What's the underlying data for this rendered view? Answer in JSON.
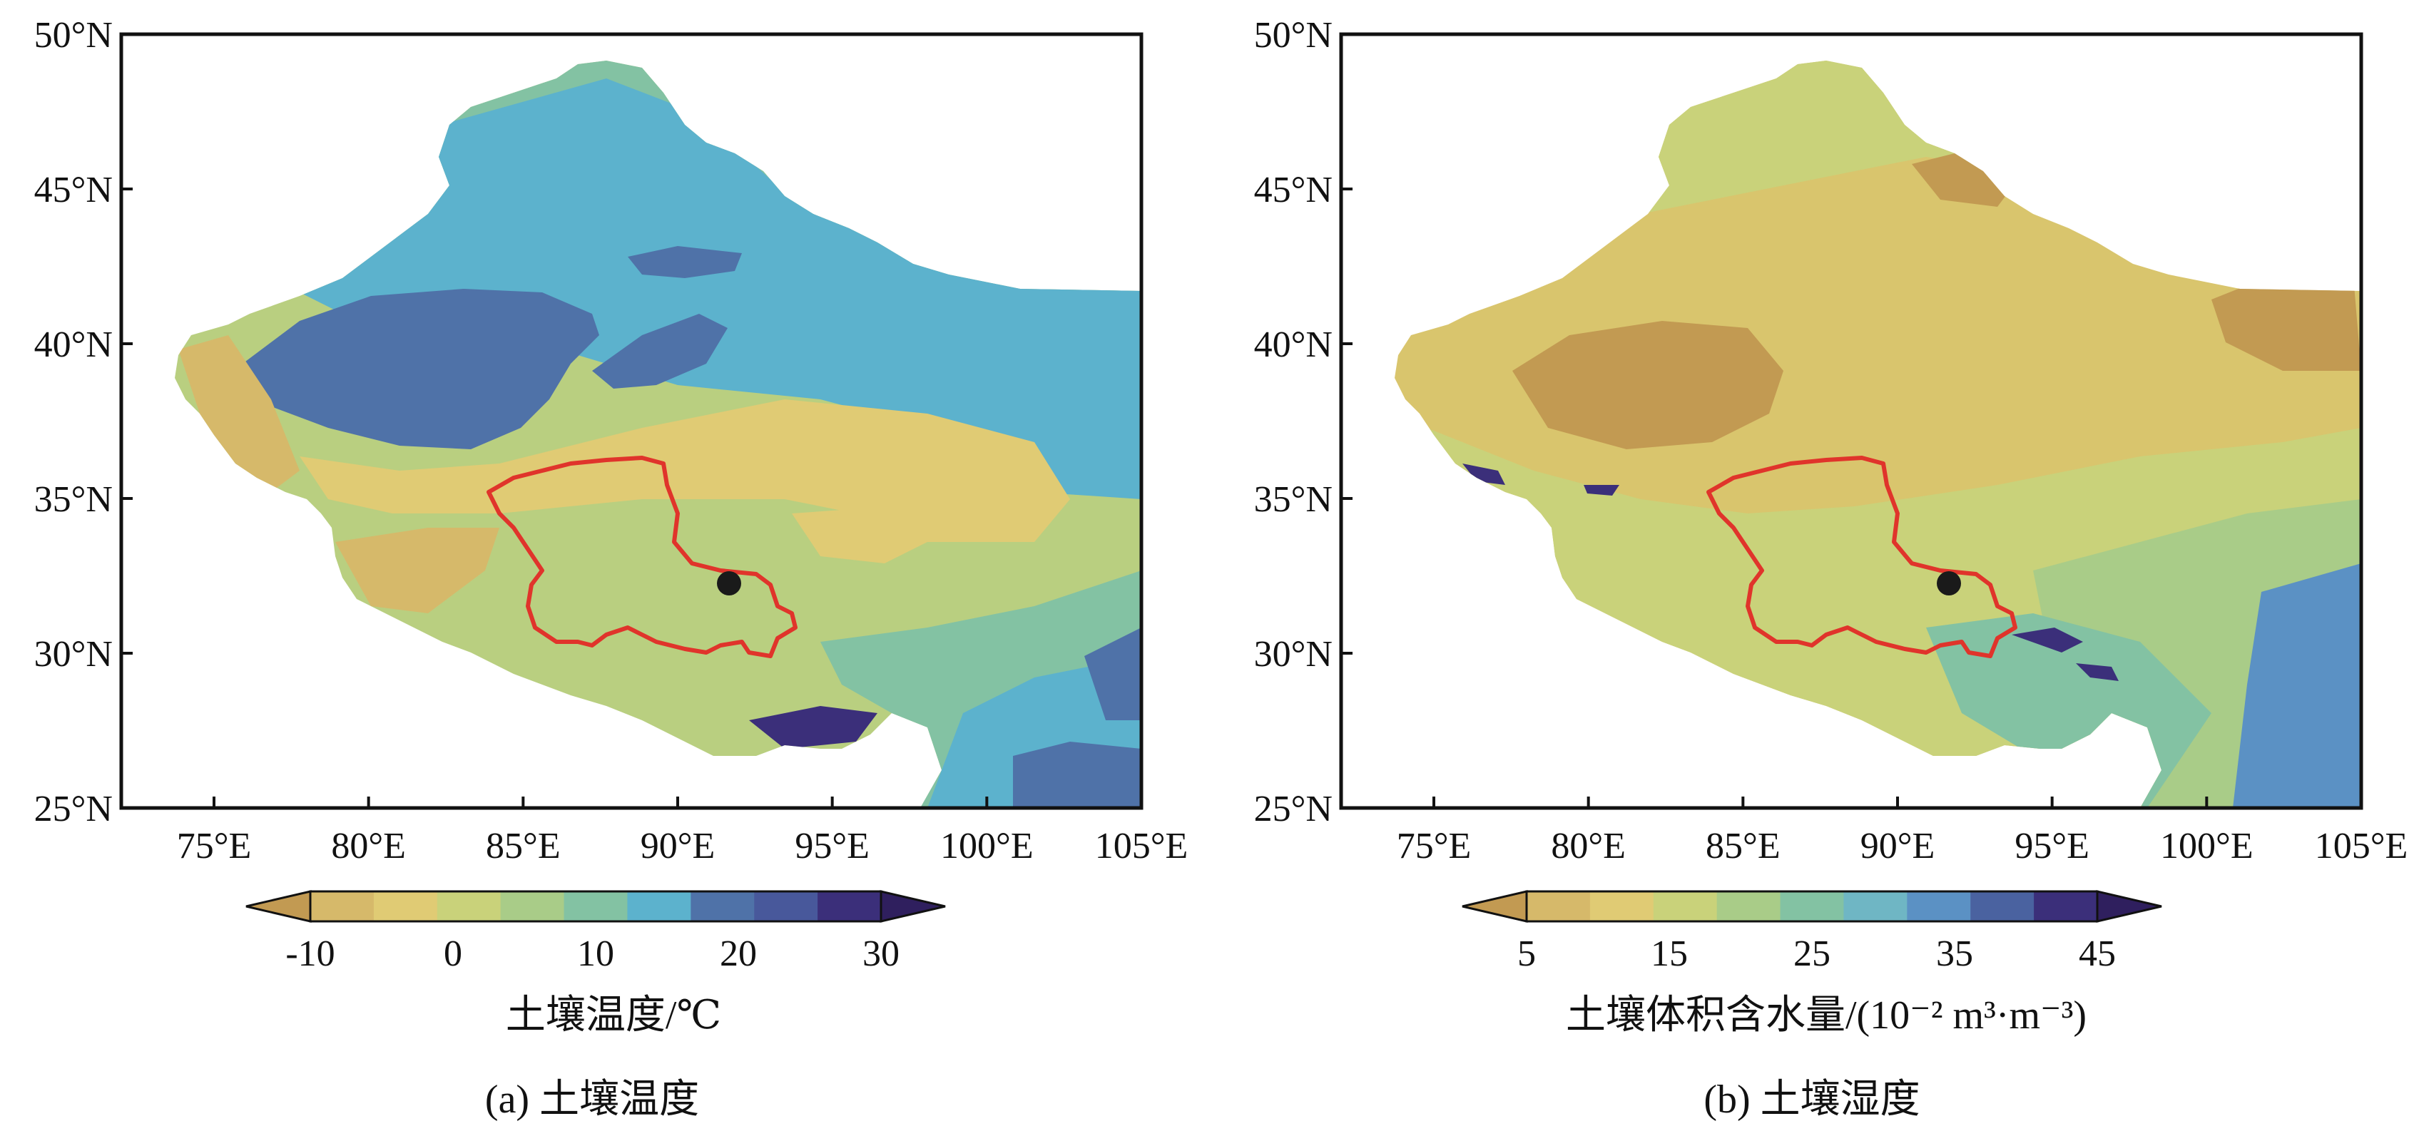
{
  "panels": [
    {
      "id": "a",
      "caption": "(a) 土壤温度",
      "colorbar_label": "土壤温度/℃",
      "colorbar_ticks": [
        "-10",
        "0",
        "10",
        "20",
        "30"
      ],
      "colorbar_colors": [
        "#c29a52",
        "#d6b96a",
        "#e0cb74",
        "#c9d27a",
        "#a9cc88",
        "#83c2a3",
        "#5cb2cd",
        "#4f72a8",
        "#48589b",
        "#3b2f7a",
        "#2f1f5e"
      ],
      "lat_labels": [
        "50°N",
        "45°N",
        "40°N",
        "35°N",
        "30°N",
        "25°N"
      ],
      "lon_labels": [
        "75°E",
        "80°E",
        "85°E",
        "90°E",
        "95°E",
        "100°E",
        "105°E"
      ]
    },
    {
      "id": "b",
      "caption": "(b) 土壤湿度",
      "colorbar_label": "土壤体积含水量/(10⁻² m³·m⁻³)",
      "colorbar_ticks": [
        "5",
        "15",
        "25",
        "35",
        "45"
      ],
      "colorbar_colors": [
        "#c29a52",
        "#d6b96a",
        "#e0cb74",
        "#c9d27a",
        "#a9cc88",
        "#83c2a3",
        "#6fb6c4",
        "#5b91c4",
        "#4a62a0",
        "#3b2f7a",
        "#2f1f5e"
      ],
      "lat_labels": [
        "50°N",
        "45°N",
        "40°N",
        "35°N",
        "30°N",
        "25°N"
      ],
      "lon_labels": [
        "75°E",
        "80°E",
        "85°E",
        "90°E",
        "95°E",
        "100°E",
        "105°E"
      ]
    }
  ],
  "map_data": {
    "lon_range": [
      72,
      105
    ],
    "lat_range": [
      25,
      50
    ],
    "site_marker": {
      "lon": 91.7,
      "lat": 32.3
    }
  }
}
